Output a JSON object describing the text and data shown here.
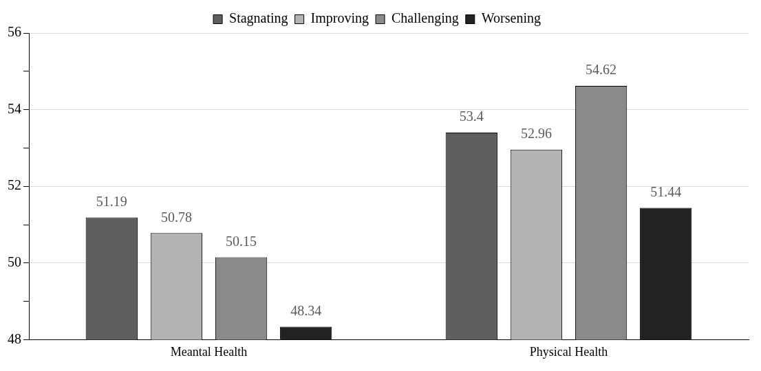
{
  "chart_data": {
    "type": "bar",
    "categories": [
      "Meantal Health",
      "Physical Health"
    ],
    "series": [
      {
        "name": "Stagnating",
        "color": "#5f5f5f",
        "values": [
          51.19,
          53.4
        ]
      },
      {
        "name": "Improving",
        "color": "#b3b3b3",
        "values": [
          50.78,
          52.96
        ]
      },
      {
        "name": "Challenging",
        "color": "#8a8a8a",
        "values": [
          50.15,
          54.62
        ]
      },
      {
        "name": "Worsening",
        "color": "#222222",
        "values": [
          48.34,
          51.44
        ]
      }
    ],
    "ylim": [
      48,
      56
    ],
    "yticks": [
      48,
      {
        "value": 49,
        "label": null
      },
      50,
      {
        "value": 51,
        "label": null
      },
      52,
      {
        "value": 53,
        "label": null
      },
      54,
      {
        "value": 55,
        "label": null
      },
      56
    ],
    "grid": "y",
    "legend": "top",
    "data_labels": true
  }
}
